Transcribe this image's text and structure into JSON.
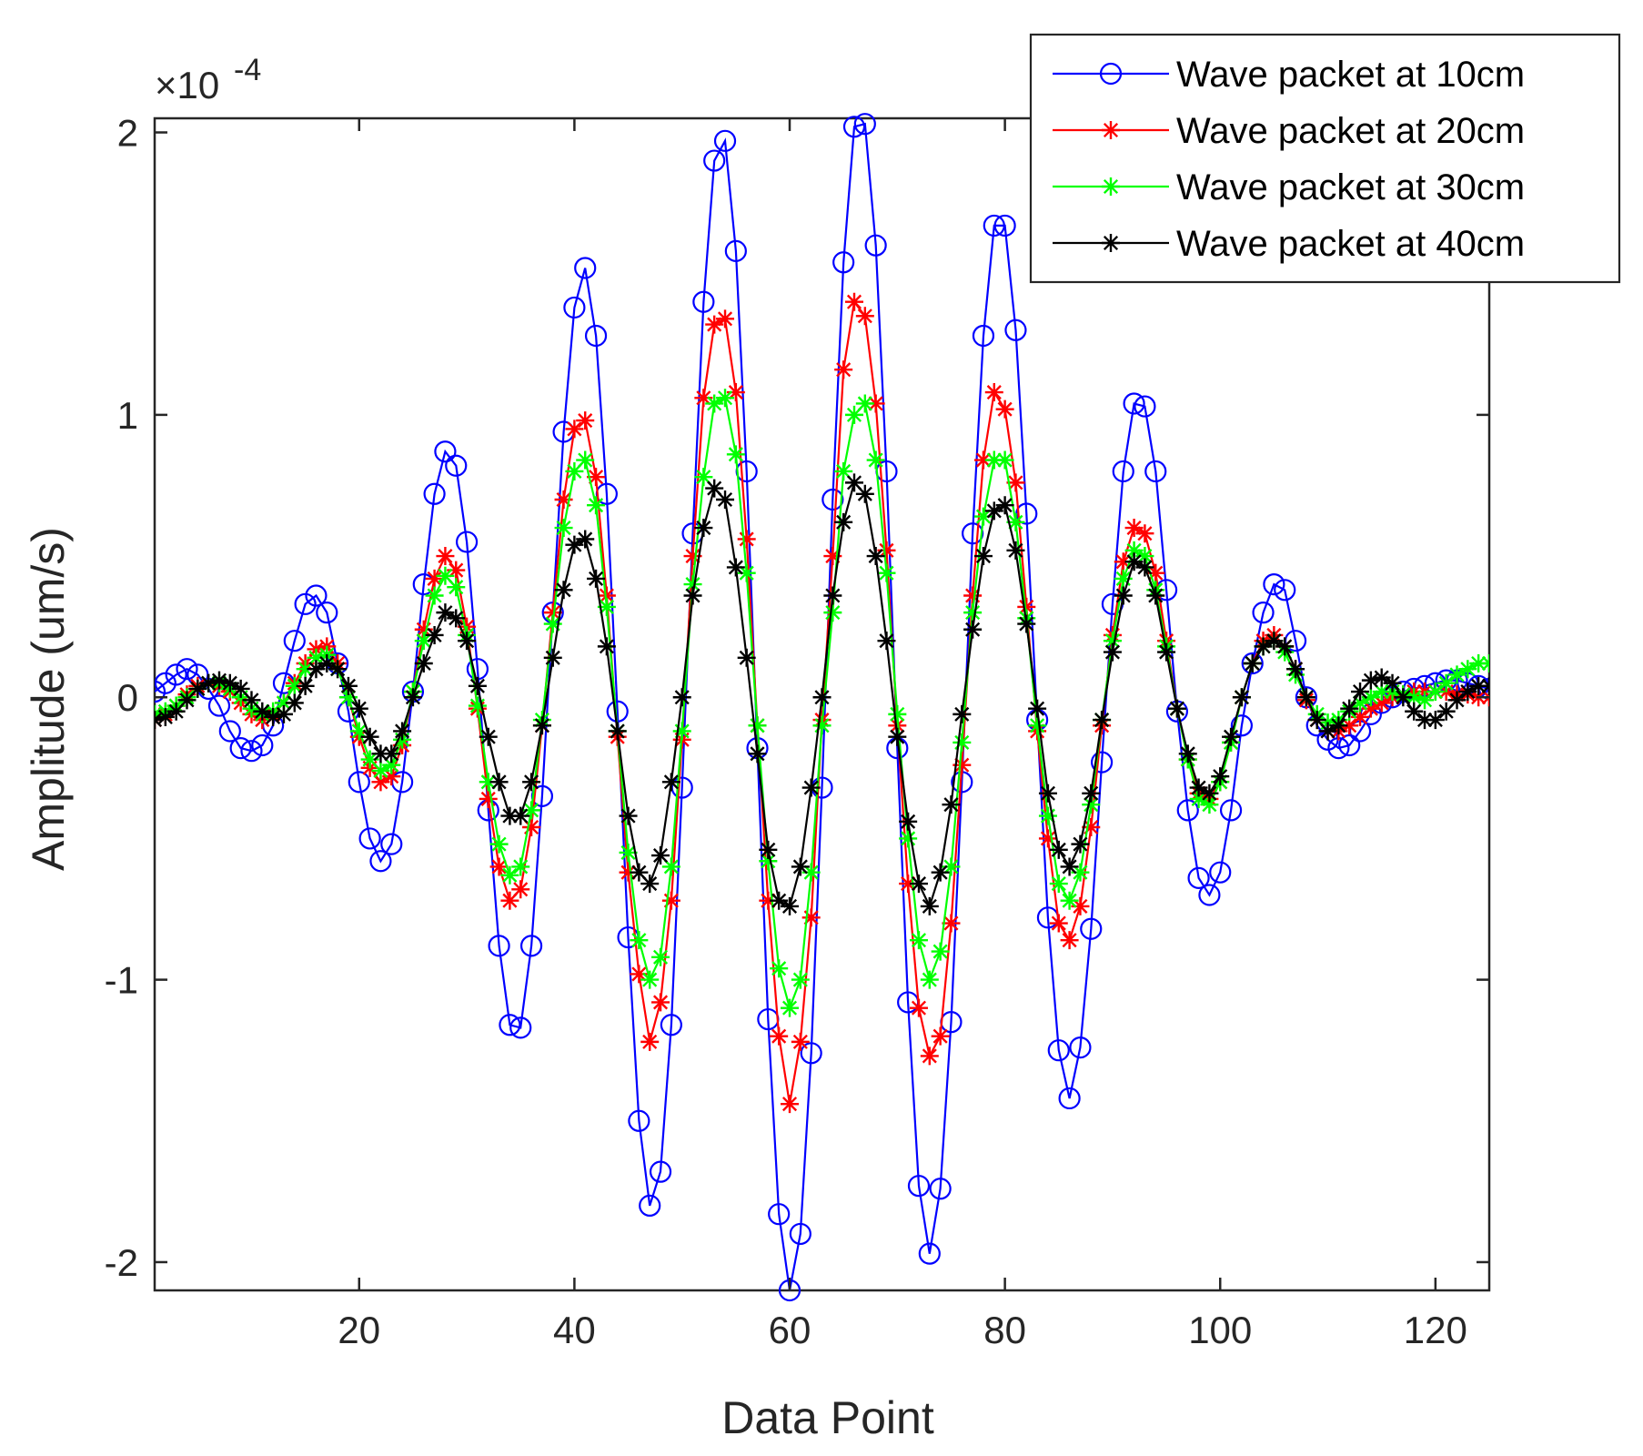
{
  "chart_data": {
    "type": "line",
    "xlabel": "Data Point",
    "ylabel": "Amplitude (um/s)",
    "y_exponent": {
      "base": "×10",
      "power": "-4"
    },
    "xlim": [
      1,
      125
    ],
    "ylim": [
      -2.1,
      2.05
    ],
    "xticks": [
      20,
      40,
      60,
      80,
      100,
      120
    ],
    "yticks": [
      -2,
      -1,
      0,
      1,
      2
    ],
    "grid": false,
    "legend_position": "top-right",
    "series": [
      {
        "name": "Wave packet at 10cm",
        "color": "#0000ff",
        "marker": "circle",
        "x": [
          1,
          2,
          3,
          4,
          5,
          6,
          7,
          8,
          9,
          10,
          11,
          12,
          13,
          14,
          15,
          16,
          17,
          18,
          19,
          20,
          21,
          22,
          23,
          24,
          25,
          26,
          27,
          28,
          29,
          30,
          31,
          32,
          33,
          34,
          35,
          36,
          37,
          38,
          39,
          40,
          41,
          42,
          43,
          44,
          45,
          46,
          47,
          48,
          49,
          50,
          51,
          52,
          53,
          54,
          55,
          56,
          57,
          58,
          59,
          60,
          61,
          62,
          63,
          64,
          65,
          66,
          67,
          68,
          69,
          70,
          71,
          72,
          73,
          74,
          75,
          76,
          77,
          78,
          79,
          80,
          81,
          82,
          83,
          84,
          85,
          86,
          87,
          88,
          89,
          90,
          91,
          92,
          93,
          94,
          95,
          96,
          97,
          98,
          99,
          100,
          101,
          102,
          103,
          104,
          105,
          106,
          107,
          108,
          109,
          110,
          111,
          112,
          113,
          114,
          115,
          116,
          117,
          118,
          119,
          120,
          121,
          122,
          123,
          124,
          125
        ],
        "values": [
          0.02,
          0.05,
          0.08,
          0.1,
          0.08,
          0.03,
          -0.03,
          -0.12,
          -0.18,
          -0.19,
          -0.17,
          -0.1,
          0.05,
          0.2,
          0.33,
          0.36,
          0.3,
          0.12,
          -0.05,
          -0.3,
          -0.5,
          -0.58,
          -0.52,
          -0.3,
          0.02,
          0.4,
          0.72,
          0.87,
          0.82,
          0.55,
          0.1,
          -0.4,
          -0.88,
          -1.16,
          -1.17,
          -0.88,
          -0.35,
          0.3,
          0.94,
          1.38,
          1.52,
          1.28,
          0.72,
          -0.05,
          -0.85,
          -1.5,
          -1.8,
          -1.68,
          -1.16,
          -0.32,
          0.58,
          1.4,
          1.9,
          1.97,
          1.58,
          0.8,
          -0.18,
          -1.14,
          -1.83,
          -2.1,
          -1.9,
          -1.26,
          -0.32,
          0.7,
          1.54,
          2.02,
          2.03,
          1.6,
          0.8,
          -0.18,
          -1.08,
          -1.73,
          -1.97,
          -1.74,
          -1.15,
          -0.3,
          0.58,
          1.28,
          1.67,
          1.67,
          1.3,
          0.65,
          -0.08,
          -0.78,
          -1.25,
          -1.42,
          -1.24,
          -0.82,
          -0.23,
          0.33,
          0.8,
          1.04,
          1.03,
          0.8,
          0.38,
          -0.05,
          -0.4,
          -0.64,
          -0.7,
          -0.62,
          -0.4,
          -0.1,
          0.12,
          0.3,
          0.4,
          0.38,
          0.2,
          0.0,
          -0.1,
          -0.15,
          -0.18,
          -0.17,
          -0.12,
          -0.06,
          -0.02,
          0.0,
          0.02,
          0.03,
          0.04,
          0.05,
          0.06,
          0.06,
          0.05,
          0.04,
          0.03
        ]
      },
      {
        "name": "Wave packet at 20cm",
        "color": "#ff0000",
        "marker": "asterisk",
        "x": [
          1,
          2,
          3,
          4,
          5,
          6,
          7,
          8,
          9,
          10,
          11,
          12,
          13,
          14,
          15,
          16,
          17,
          18,
          19,
          20,
          21,
          22,
          23,
          24,
          25,
          26,
          27,
          28,
          29,
          30,
          31,
          32,
          33,
          34,
          35,
          36,
          37,
          38,
          39,
          40,
          41,
          42,
          43,
          44,
          45,
          46,
          47,
          48,
          49,
          50,
          51,
          52,
          53,
          54,
          55,
          56,
          57,
          58,
          59,
          60,
          61,
          62,
          63,
          64,
          65,
          66,
          67,
          68,
          69,
          70,
          71,
          72,
          73,
          74,
          75,
          76,
          77,
          78,
          79,
          80,
          81,
          82,
          83,
          84,
          85,
          86,
          87,
          88,
          89,
          90,
          91,
          92,
          93,
          94,
          95,
          96,
          97,
          98,
          99,
          100,
          101,
          102,
          103,
          104,
          105,
          106,
          107,
          108,
          109,
          110,
          111,
          112,
          113,
          114,
          115,
          116,
          117,
          118,
          119,
          120,
          121,
          122,
          123,
          124,
          125
        ],
        "values": [
          -0.08,
          -0.06,
          -0.03,
          0.01,
          0.04,
          0.05,
          0.04,
          0.02,
          -0.02,
          -0.06,
          -0.08,
          -0.06,
          -0.02,
          0.05,
          0.12,
          0.17,
          0.18,
          0.12,
          0.0,
          -0.14,
          -0.25,
          -0.3,
          -0.28,
          -0.17,
          0.02,
          0.24,
          0.42,
          0.5,
          0.45,
          0.25,
          -0.04,
          -0.36,
          -0.6,
          -0.72,
          -0.68,
          -0.46,
          -0.1,
          0.3,
          0.7,
          0.95,
          0.98,
          0.78,
          0.36,
          -0.14,
          -0.62,
          -0.98,
          -1.22,
          -1.08,
          -0.72,
          -0.15,
          0.5,
          1.06,
          1.32,
          1.34,
          1.08,
          0.56,
          -0.1,
          -0.72,
          -1.2,
          -1.44,
          -1.22,
          -0.78,
          -0.08,
          0.5,
          1.16,
          1.4,
          1.35,
          1.04,
          0.52,
          -0.1,
          -0.66,
          -1.1,
          -1.27,
          -1.2,
          -0.8,
          -0.24,
          0.36,
          0.84,
          1.08,
          1.02,
          0.76,
          0.32,
          -0.12,
          -0.5,
          -0.8,
          -0.86,
          -0.74,
          -0.46,
          -0.1,
          0.22,
          0.48,
          0.6,
          0.58,
          0.44,
          0.2,
          -0.04,
          -0.22,
          -0.34,
          -0.36,
          -0.3,
          -0.16,
          0.0,
          0.12,
          0.2,
          0.22,
          0.18,
          0.1,
          -0.01,
          -0.08,
          -0.12,
          -0.12,
          -0.1,
          -0.07,
          -0.04,
          -0.02,
          0.0,
          0.01,
          0.02,
          0.02,
          0.02,
          0.02,
          0.01,
          0.01,
          0.0,
          0.0
        ]
      },
      {
        "name": "Wave packet at 30cm",
        "color": "#00ff00",
        "marker": "asterisk",
        "x": [
          1,
          2,
          3,
          4,
          5,
          6,
          7,
          8,
          9,
          10,
          11,
          12,
          13,
          14,
          15,
          16,
          17,
          18,
          19,
          20,
          21,
          22,
          23,
          24,
          25,
          26,
          27,
          28,
          29,
          30,
          31,
          32,
          33,
          34,
          35,
          36,
          37,
          38,
          39,
          40,
          41,
          42,
          43,
          44,
          45,
          46,
          47,
          48,
          49,
          50,
          51,
          52,
          53,
          54,
          55,
          56,
          57,
          58,
          59,
          60,
          61,
          62,
          63,
          64,
          65,
          66,
          67,
          68,
          69,
          70,
          71,
          72,
          73,
          74,
          75,
          76,
          77,
          78,
          79,
          80,
          81,
          82,
          83,
          84,
          85,
          86,
          87,
          88,
          89,
          90,
          91,
          92,
          93,
          94,
          95,
          96,
          97,
          98,
          99,
          100,
          101,
          102,
          103,
          104,
          105,
          106,
          107,
          108,
          109,
          110,
          111,
          112,
          113,
          114,
          115,
          116,
          117,
          118,
          119,
          120,
          121,
          122,
          123,
          124,
          125
        ],
        "values": [
          -0.06,
          -0.05,
          -0.03,
          0.0,
          0.03,
          0.05,
          0.05,
          0.03,
          0.0,
          -0.04,
          -0.06,
          -0.05,
          -0.02,
          0.04,
          0.1,
          0.14,
          0.15,
          0.1,
          0.0,
          -0.12,
          -0.22,
          -0.26,
          -0.24,
          -0.15,
          0.02,
          0.2,
          0.36,
          0.43,
          0.39,
          0.22,
          -0.03,
          -0.3,
          -0.52,
          -0.63,
          -0.6,
          -0.4,
          -0.08,
          0.26,
          0.6,
          0.8,
          0.84,
          0.68,
          0.32,
          -0.12,
          -0.55,
          -0.86,
          -1.0,
          -0.92,
          -0.6,
          -0.12,
          0.4,
          0.78,
          1.04,
          1.06,
          0.86,
          0.44,
          -0.1,
          -0.58,
          -0.96,
          -1.1,
          -1.0,
          -0.62,
          -0.1,
          0.3,
          0.8,
          1.0,
          1.04,
          0.84,
          0.44,
          -0.06,
          -0.5,
          -0.86,
          -1.0,
          -0.9,
          -0.6,
          -0.16,
          0.3,
          0.64,
          0.84,
          0.84,
          0.62,
          0.28,
          -0.1,
          -0.42,
          -0.66,
          -0.72,
          -0.62,
          -0.38,
          -0.08,
          0.2,
          0.42,
          0.52,
          0.5,
          0.38,
          0.18,
          -0.04,
          -0.22,
          -0.36,
          -0.38,
          -0.3,
          -0.16,
          0.0,
          0.12,
          0.18,
          0.2,
          0.16,
          0.08,
          0.0,
          -0.06,
          -0.09,
          -0.08,
          -0.05,
          -0.02,
          0.0,
          0.02,
          0.02,
          0.01,
          0.0,
          -0.01,
          0.02,
          0.05,
          0.08,
          0.1,
          0.12,
          0.12
        ]
      },
      {
        "name": "Wave packet at 40cm",
        "color": "#000000",
        "marker": "asterisk",
        "x": [
          1,
          2,
          3,
          4,
          5,
          6,
          7,
          8,
          9,
          10,
          11,
          12,
          13,
          14,
          15,
          16,
          17,
          18,
          19,
          20,
          21,
          22,
          23,
          24,
          25,
          26,
          27,
          28,
          29,
          30,
          31,
          32,
          33,
          34,
          35,
          36,
          37,
          38,
          39,
          40,
          41,
          42,
          43,
          44,
          45,
          46,
          47,
          48,
          49,
          50,
          51,
          52,
          53,
          54,
          55,
          56,
          57,
          58,
          59,
          60,
          61,
          62,
          63,
          64,
          65,
          66,
          67,
          68,
          69,
          70,
          71,
          72,
          73,
          74,
          75,
          76,
          77,
          78,
          79,
          80,
          81,
          82,
          83,
          84,
          85,
          86,
          87,
          88,
          89,
          90,
          91,
          92,
          93,
          94,
          95,
          96,
          97,
          98,
          99,
          100,
          101,
          102,
          103,
          104,
          105,
          106,
          107,
          108,
          109,
          110,
          111,
          112,
          113,
          114,
          115,
          116,
          117,
          118,
          119,
          120,
          121,
          122,
          123,
          124,
          125
        ],
        "values": [
          -0.08,
          -0.07,
          -0.05,
          -0.01,
          0.03,
          0.05,
          0.06,
          0.05,
          0.03,
          -0.01,
          -0.05,
          -0.07,
          -0.06,
          -0.02,
          0.04,
          0.1,
          0.12,
          0.1,
          0.04,
          -0.04,
          -0.14,
          -0.2,
          -0.2,
          -0.12,
          0.0,
          0.12,
          0.22,
          0.3,
          0.28,
          0.2,
          0.04,
          -0.14,
          -0.3,
          -0.42,
          -0.42,
          -0.3,
          -0.1,
          0.14,
          0.38,
          0.54,
          0.56,
          0.42,
          0.18,
          -0.12,
          -0.42,
          -0.62,
          -0.66,
          -0.56,
          -0.3,
          0.0,
          0.36,
          0.6,
          0.74,
          0.7,
          0.46,
          0.14,
          -0.2,
          -0.54,
          -0.72,
          -0.74,
          -0.6,
          -0.32,
          0.0,
          0.36,
          0.62,
          0.76,
          0.72,
          0.5,
          0.2,
          -0.14,
          -0.44,
          -0.66,
          -0.74,
          -0.62,
          -0.38,
          -0.06,
          0.24,
          0.5,
          0.66,
          0.68,
          0.52,
          0.26,
          -0.04,
          -0.34,
          -0.54,
          -0.6,
          -0.52,
          -0.34,
          -0.08,
          0.16,
          0.36,
          0.48,
          0.46,
          0.36,
          0.16,
          -0.04,
          -0.2,
          -0.32,
          -0.34,
          -0.28,
          -0.14,
          0.0,
          0.12,
          0.18,
          0.2,
          0.18,
          0.1,
          0.0,
          -0.08,
          -0.12,
          -0.1,
          -0.04,
          0.02,
          0.06,
          0.07,
          0.05,
          0.0,
          -0.05,
          -0.08,
          -0.08,
          -0.05,
          -0.01,
          0.02,
          0.04,
          0.04
        ]
      }
    ]
  }
}
